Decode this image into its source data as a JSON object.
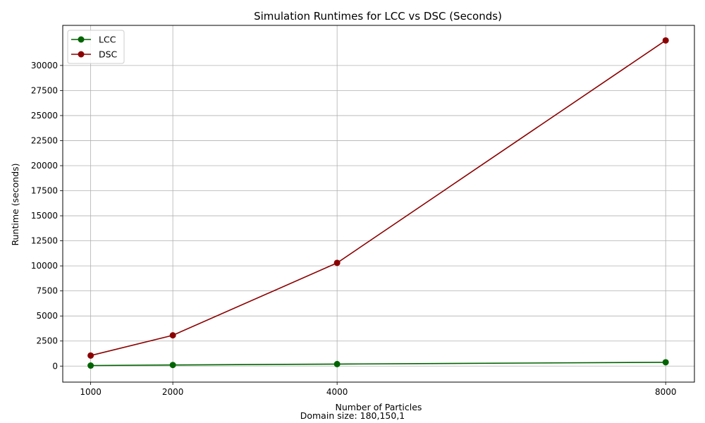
{
  "chart_data": {
    "type": "line",
    "title": "Simulation Runtimes for LCC vs DSC (Seconds)",
    "xlabel": "Number of Particles",
    "ylabel": "Runtime (seconds)",
    "footnote": "Domain size: 180,150,1",
    "x": [
      1000,
      2000,
      4000,
      8000
    ],
    "x_ticks": [
      1000,
      2000,
      4000,
      8000
    ],
    "x_tick_labels": [
      "1000",
      "2000",
      "4000",
      "8000"
    ],
    "xlim": [
      660,
      8350
    ],
    "y_ticks": [
      0,
      2500,
      5000,
      7500,
      10000,
      12500,
      15000,
      17500,
      20000,
      22500,
      25000,
      27500,
      30000
    ],
    "y_tick_labels": [
      "0",
      "2500",
      "5000",
      "7500",
      "10000",
      "12500",
      "15000",
      "17500",
      "20000",
      "22500",
      "25000",
      "27500",
      "30000"
    ],
    "ylim": [
      -1600,
      34000
    ],
    "grid": true,
    "legend_position": "top-left",
    "series": [
      {
        "name": "LCC",
        "color": "#006400",
        "values": [
          50,
          110,
          200,
          380
        ]
      },
      {
        "name": "DSC",
        "color": "#8b0000",
        "values": [
          1050,
          3070,
          10300,
          32500
        ]
      }
    ]
  }
}
